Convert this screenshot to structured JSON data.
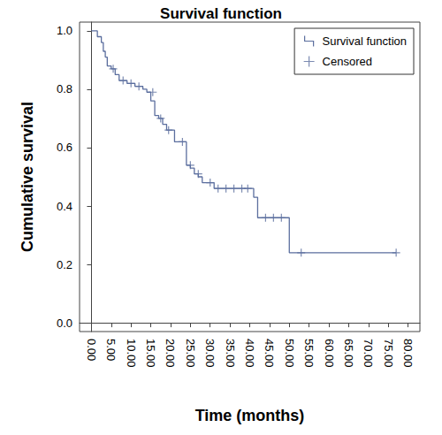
{
  "chart_data": {
    "type": "line",
    "title": "Survival function",
    "x_label": "Time (months)",
    "y_label": "Cumulative survival",
    "legend": "upper right",
    "grid": false,
    "xlim": [
      -3,
      83
    ],
    "xticks": [
      {
        "value": 0,
        "label": "0.00"
      },
      {
        "value": 5,
        "label": "5.00"
      },
      {
        "value": 10,
        "label": "10.00"
      },
      {
        "value": 15,
        "label": "15.00"
      },
      {
        "value": 20,
        "label": "20.00"
      },
      {
        "value": 25,
        "label": "25.00"
      },
      {
        "value": 30,
        "label": "30.00"
      },
      {
        "value": 35,
        "label": "35.00"
      },
      {
        "value": 40,
        "label": "40.00"
      },
      {
        "value": 45,
        "label": "45.00"
      },
      {
        "value": 50,
        "label": "50.00"
      },
      {
        "value": 55,
        "label": "55.00"
      },
      {
        "value": 60,
        "label": "60.00"
      },
      {
        "value": 65,
        "label": "65.00"
      },
      {
        "value": 70,
        "label": "70.00"
      },
      {
        "value": 75,
        "label": "75.00"
      },
      {
        "value": 80,
        "label": "80.00"
      }
    ],
    "ylim": [
      -0.03,
      1.03
    ],
    "yticks": [
      {
        "value": 0,
        "label": "0.0"
      },
      0.2,
      0.4,
      0.6,
      0.8,
      {
        "value": 1,
        "label": "1.0"
      }
    ],
    "series": [
      {
        "name": "Survival function",
        "type": "line",
        "line_style": "step",
        "color": "#5b6e9e",
        "x": [
          0,
          1.5,
          2.5,
          3,
          3.5,
          4,
          5,
          6,
          7,
          9,
          11,
          13,
          14,
          15,
          16,
          17,
          18,
          19,
          21,
          24,
          25,
          26,
          27,
          28,
          31,
          41,
          42,
          50,
          77
        ],
        "values": [
          1.0,
          0.98,
          0.96,
          0.93,
          0.91,
          0.88,
          0.87,
          0.85,
          0.83,
          0.82,
          0.81,
          0.8,
          0.79,
          0.76,
          0.71,
          0.7,
          0.68,
          0.66,
          0.62,
          0.54,
          0.53,
          0.51,
          0.5,
          0.48,
          0.46,
          0.43,
          0.36,
          0.24,
          0.24
        ]
      },
      {
        "name": "Censored",
        "type": "scatter",
        "marker": "+",
        "color": "#5b6e9e",
        "x": [
          5.5,
          8,
          10,
          12,
          15.5,
          17.5,
          19.5,
          23,
          25,
          27,
          30,
          32,
          34,
          36,
          38,
          39.5,
          44,
          46,
          48,
          53,
          77
        ],
        "values": [
          0.87,
          0.83,
          0.82,
          0.81,
          0.79,
          0.7,
          0.66,
          0.62,
          0.54,
          0.51,
          0.48,
          0.46,
          0.46,
          0.46,
          0.46,
          0.46,
          0.36,
          0.36,
          0.36,
          0.24,
          0.24
        ]
      }
    ]
  }
}
